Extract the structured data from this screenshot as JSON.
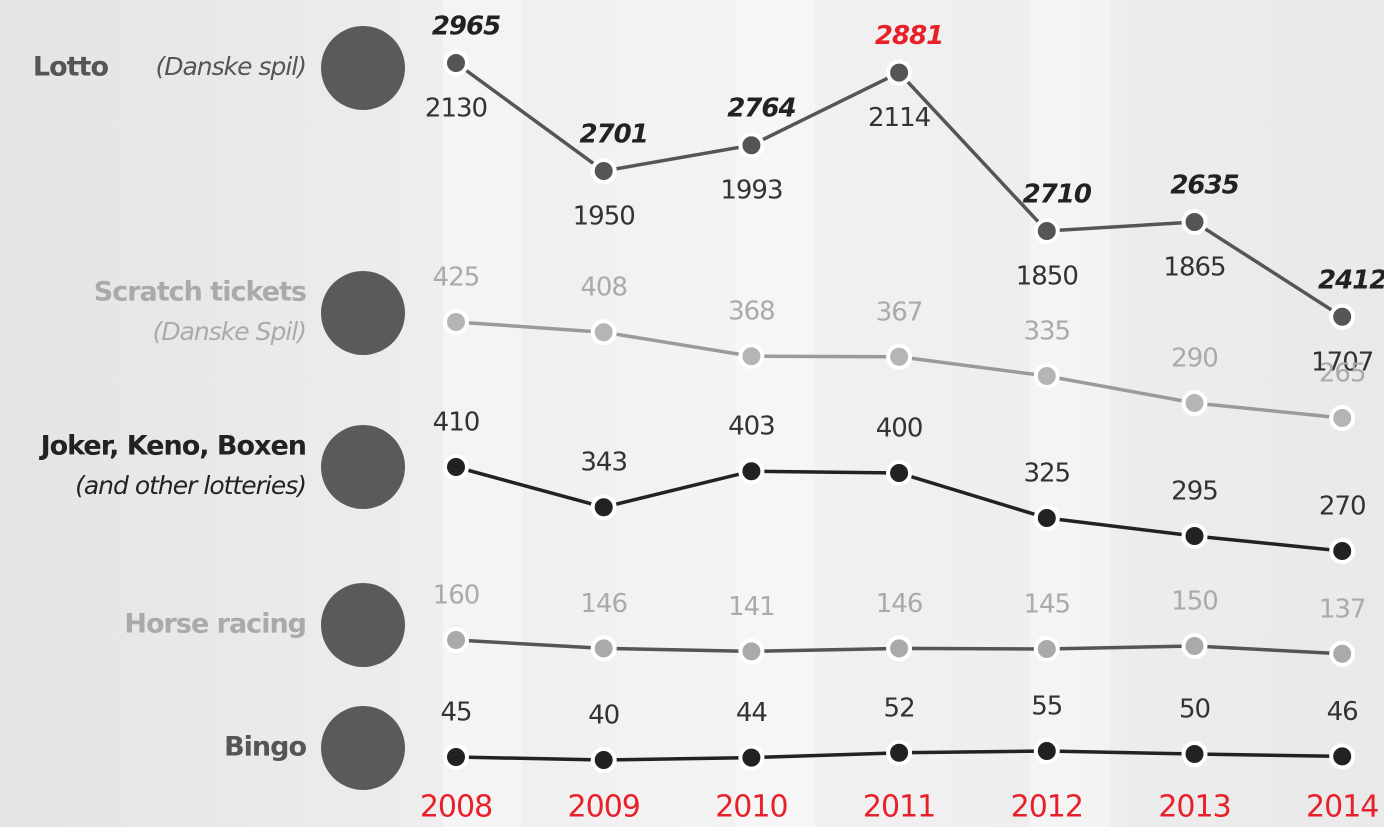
{
  "chart_data": {
    "type": "line",
    "categories": [
      "2008",
      "2009",
      "2010",
      "2011",
      "2012",
      "2013",
      "2014"
    ],
    "category_color": "#e8202a",
    "series": [
      {
        "name": "Lotto",
        "subname": "(Danske spil)",
        "color": "#555555",
        "point_color": "#555555",
        "label_color": "#333333",
        "name_color": "#555555",
        "values": [
          2130,
          1950,
          1993,
          2114,
          1850,
          1865,
          1707
        ],
        "top_values": [
          2965,
          2701,
          2764,
          2881,
          2710,
          2635,
          2412
        ],
        "highlight_index": 3,
        "highlight_color": "#e8202a"
      },
      {
        "name": "Scratch tickets",
        "subname": "(Danske Spil)",
        "color": "#9a9a9a",
        "point_color": "#b5b5b5",
        "label_color": "#aaaaaa",
        "name_color": "#aaaaaa",
        "values": [
          425,
          408,
          368,
          367,
          335,
          290,
          265
        ]
      },
      {
        "name": "Joker, Keno, Boxen",
        "subname": "(and other lotteries)",
        "color": "#222222",
        "point_color": "#222222",
        "label_color": "#333333",
        "name_color": "#222222",
        "values": [
          410,
          343,
          403,
          400,
          325,
          295,
          270
        ]
      },
      {
        "name": "Horse racing",
        "color": "#555555",
        "point_color": "#aaaaaa",
        "label_color": "#aaaaaa",
        "name_color": "#aaaaaa",
        "values": [
          160,
          146,
          141,
          146,
          145,
          150,
          137
        ]
      },
      {
        "name": "Bingo",
        "color": "#222222",
        "point_color": "#222222",
        "label_color": "#333333",
        "name_color": "#555555",
        "values": [
          45,
          40,
          44,
          52,
          55,
          50,
          46
        ]
      }
    ]
  }
}
